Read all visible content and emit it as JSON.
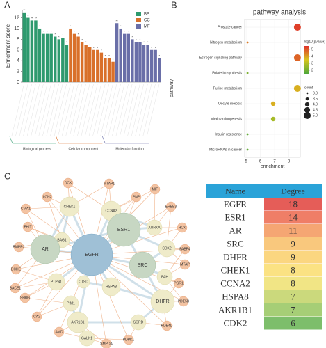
{
  "panel_labels": [
    "A",
    "B",
    "C"
  ],
  "chart_data": [
    {
      "type": "bar",
      "y_label": "Enrichment score",
      "categories": [
        null,
        null,
        null,
        null,
        null,
        null,
        null,
        null,
        null,
        null,
        null,
        null,
        null,
        null,
        null,
        null,
        null,
        null,
        null,
        null,
        null,
        null,
        null,
        null,
        null,
        null,
        null,
        null,
        null,
        null,
        null,
        null,
        null,
        null,
        null,
        null
      ],
      "ylim": [
        0,
        13.5
      ],
      "yticks": [
        0,
        2,
        4,
        6,
        8,
        10,
        12
      ],
      "legend": "top-right",
      "series": [
        {
          "name": "BP",
          "group": "Biological process",
          "color": "#2e9a6e",
          "values": [
            13,
            12,
            11.5,
            11.5,
            10,
            9,
            9,
            9,
            8.5,
            8,
            8.3,
            7,
            null,
            null,
            null,
            null,
            null,
            null,
            null,
            null,
            null,
            null,
            null,
            null,
            null,
            null,
            null,
            null,
            null,
            null,
            null,
            null,
            null,
            null,
            null,
            null
          ],
          "significance": [
            "**",
            "**",
            "**",
            "**",
            "*",
            "*",
            "*",
            "*",
            "*",
            "*",
            "*",
            "*",
            null,
            null,
            null,
            null,
            null,
            null,
            null,
            null,
            null,
            null,
            null,
            null,
            null,
            null,
            null,
            null,
            null,
            null,
            null,
            null,
            null,
            null,
            null,
            null
          ]
        },
        {
          "name": "CC",
          "group": "Cellular component",
          "color": "#d9702a",
          "values": [
            null,
            null,
            null,
            null,
            null,
            null,
            null,
            null,
            null,
            null,
            null,
            null,
            10,
            9,
            8.5,
            7.5,
            7,
            6.5,
            6,
            6,
            5.5,
            4.5,
            4.5,
            3.8,
            null,
            null,
            null,
            null,
            null,
            null,
            null,
            null,
            null,
            null,
            null,
            null
          ],
          "significance": [
            null,
            null,
            null,
            null,
            null,
            null,
            null,
            null,
            null,
            null,
            null,
            null,
            "*",
            "*",
            "*",
            "*",
            "*",
            "*",
            "*",
            "*",
            "*",
            "*",
            "*",
            "*",
            null,
            null,
            null,
            null,
            null,
            null,
            null,
            null,
            null,
            null,
            null,
            null
          ]
        },
        {
          "name": "MF",
          "group": "Molecular function",
          "color": "#6a6fa8",
          "values": [
            null,
            null,
            null,
            null,
            null,
            null,
            null,
            null,
            null,
            null,
            null,
            null,
            null,
            null,
            null,
            null,
            null,
            null,
            null,
            null,
            null,
            null,
            null,
            null,
            11,
            10,
            9,
            9,
            8,
            7.5,
            7.5,
            7,
            7,
            6,
            6,
            4.5
          ],
          "significance": [
            null,
            null,
            null,
            null,
            null,
            null,
            null,
            null,
            null,
            null,
            null,
            null,
            null,
            null,
            null,
            null,
            null,
            null,
            null,
            null,
            null,
            null,
            null,
            null,
            "**",
            "*",
            "*",
            "*",
            "*",
            "*",
            "*",
            "*",
            "*",
            "*",
            "*",
            "*"
          ]
        }
      ]
    },
    {
      "type": "scatter",
      "title": "pathway analysis",
      "x_label": "enrichment",
      "y_label": "pathway",
      "categories": [
        "Prostate cancer",
        "Nitrogen metabolism",
        "Estrogen signaling pathway",
        "Folate biosynthesis",
        "Purine metabolism",
        "Oocyte meiosis",
        "Viral carcinogenesis",
        "Insulin resistance",
        "MicroRNAs in cancer"
      ],
      "x": [
        8.6,
        5.1,
        8.6,
        5.1,
        8.6,
        6.9,
        6.9,
        5.1,
        5.1
      ],
      "size": [
        5,
        3,
        5,
        3,
        5,
        4,
        4,
        3,
        3
      ],
      "color_values": [
        5.3,
        4.5,
        4.8,
        2.2,
        3.8,
        3.8,
        2.8,
        1.8,
        1.8
      ],
      "xlim": [
        4.9,
        8.8
      ],
      "xticks": [
        5,
        6,
        7,
        8
      ],
      "color_title": "-log10(pvalue)",
      "clim": [
        1.5,
        5.5
      ],
      "cticks": [
        2,
        3,
        4,
        5
      ],
      "colormap": [
        "#4ea83a",
        "#d6c51e",
        "#e0302a"
      ],
      "size_title": "count",
      "size_ticks": [
        {
          "value": 3,
          "label": "3.0"
        },
        {
          "value": 3.5,
          "label": "3.5"
        },
        {
          "value": 4,
          "label": "4.0"
        },
        {
          "value": 4.5,
          "label": "4.5"
        },
        {
          "value": 5,
          "label": "5.0"
        }
      ]
    }
  ],
  "network": {
    "nodes": [
      "DCK",
      "MTAP1",
      "LCN2",
      "PNP",
      "CMA1",
      "MIF",
      "ERBB3",
      "CHEK1",
      "CCNA2",
      "AURKA",
      "ESR1",
      "FHIT",
      "BAG1",
      "BMPR2",
      "HCK",
      "AR",
      "EGFR",
      "CDK2",
      "FABP4",
      "MTAP",
      "SRC",
      "BCHE",
      "BACE1",
      "PTPN1",
      "CTSD",
      "PAH",
      "PGR1",
      "SHBG",
      "HSPA8",
      "PIM1",
      "DHFR",
      "CA2",
      "AKR1B1",
      "PDE5B",
      "AMD",
      "SORD",
      "PDE4D",
      "GALK1",
      "PDPK1",
      "SMPDA"
    ]
  },
  "table": {
    "header": [
      "Name",
      "Degree"
    ],
    "header_color": "#2aa3d8",
    "rows": [
      [
        "EGFR",
        18
      ],
      [
        "ESR1",
        14
      ],
      [
        "AR",
        11
      ],
      [
        "SRC",
        9
      ],
      [
        "DHFR",
        9
      ],
      [
        "CHEK1",
        8
      ],
      [
        "CCNA2",
        8
      ],
      [
        "HSPA8",
        7
      ],
      [
        "AKR1B1",
        7
      ],
      [
        "CDK2",
        6
      ]
    ],
    "row_colors": [
      "#e55d58",
      "#ef7e67",
      "#f5a673",
      "#f9c87d",
      "#fbd680",
      "#fbe283",
      "#f1e585",
      "#cbd97c",
      "#a6ce76",
      "#7dbe6b"
    ]
  }
}
